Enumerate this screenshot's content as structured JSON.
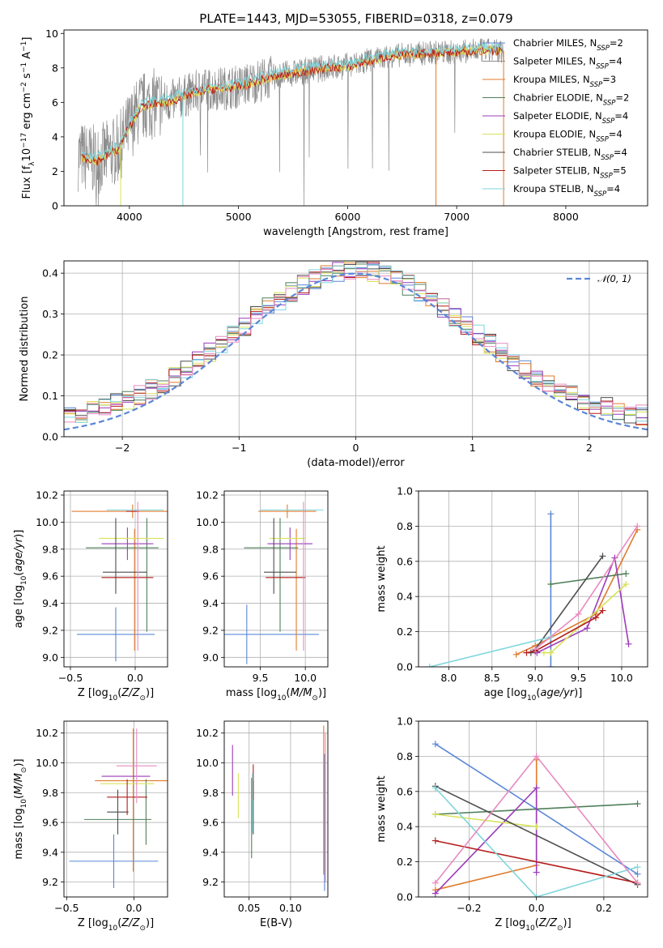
{
  "figure": {
    "title": "PLATE=1443, MJD=53055, FIBERID=0318, z=0.079"
  },
  "colors": {
    "Chabrier MILES": "#5b86d6",
    "Salpeter MILES": "#8c8c8c",
    "Kroupa MILES": "#e07b2c",
    "Chabrier ELODIE": "#4f7f5a",
    "Salpeter ELODIE": "#9b3cb8",
    "Kroupa ELODIE": "#d8e35a",
    "Chabrier STELIB": "#4d4d4d",
    "Salpeter STELIB": "#b51d1d",
    "Kroupa STELIB": "#7fd6dc",
    "Kroupa ELODIE hist": "#e88ac0",
    "normal": "#5b86d6",
    "grid": "#b0b0b0"
  },
  "chart_data": [
    {
      "id": "spectrum",
      "type": "line",
      "title": "PLATE=1443, MJD=53055, FIBERID=0318, z=0.079",
      "xlabel": "wavelength [Angstrom, rest frame]",
      "ylabel": "Flux [f_λ10^-17 erg cm^-2 s^-1 A^-1]",
      "xlim": [
        3400,
        8750
      ],
      "ylim": [
        0,
        10.2
      ],
      "xticks": [
        "4000",
        "5000",
        "6000",
        "7000",
        "8000"
      ],
      "yticks": [
        "0",
        "2",
        "4",
        "6",
        "8",
        "10"
      ],
      "grid": false,
      "legend_position": "right",
      "continuum_x": [
        3550,
        3700,
        3900,
        4000,
        4100,
        4200,
        4400,
        4600,
        4800,
        5000,
        5200,
        5400,
        5600,
        5800,
        6000,
        6200,
        6400,
        6600,
        6800,
        7000,
        7200,
        7400
      ],
      "continuum_y": [
        2.9,
        2.6,
        3.3,
        4.6,
        5.7,
        5.9,
        6.1,
        6.6,
        6.8,
        6.9,
        7.3,
        7.6,
        7.8,
        8.0,
        8.1,
        8.4,
        8.7,
        8.8,
        8.9,
        8.9,
        9.0,
        9.0
      ],
      "legend": [
        {
          "text": "Chabrier MILES, N",
          "sub": "SSP",
          "val": "=2"
        },
        {
          "text": "Salpeter MILES, N",
          "sub": "SSP",
          "val": "=4"
        },
        {
          "text": "Kroupa MILES, N",
          "sub": "SSP",
          "val": "=3"
        },
        {
          "text": "Chabrier ELODIE, N",
          "sub": "SSP",
          "val": "=2"
        },
        {
          "text": "Salpeter ELODIE, N",
          "sub": "SSP",
          "val": "=4"
        },
        {
          "text": "Kroupa ELODIE, N",
          "sub": "SSP",
          "val": "=4"
        },
        {
          "text": "Chabrier STELIB, N",
          "sub": "SSP",
          "val": "=4"
        },
        {
          "text": "Salpeter STELIB, N",
          "sub": "SSP",
          "val": "=5"
        },
        {
          "text": "Kroupa STELIB, N",
          "sub": "SSP",
          "val": "=4"
        }
      ]
    },
    {
      "id": "residuals",
      "type": "bar",
      "xlabel": "(data-model)/error",
      "ylabel": "Normed distribution",
      "xlim": [
        -2.5,
        2.5
      ],
      "ylim": [
        0,
        0.43
      ],
      "xticks": [
        "−2",
        "−1",
        "0",
        "1",
        "2"
      ],
      "yticks": [
        "0.0",
        "0.1",
        "0.2",
        "0.3",
        "0.4"
      ],
      "grid": true,
      "legend": "𝒩(0, 1)",
      "legend_position": "top-right",
      "bin_width": 0.1
    },
    {
      "id": "age_vs_Z",
      "type": "scatter",
      "xlabel": "Z [log10(Z/Z⊙)]",
      "ylabel": "age [log10(age/yr)]",
      "xlim": [
        -0.55,
        0.25
      ],
      "ylim": [
        8.93,
        10.23
      ],
      "xticks": [
        "−0.5",
        "0.0"
      ],
      "yticks": [
        "9.0",
        "9.2",
        "9.4",
        "9.6",
        "9.8",
        "10.0",
        "10.2"
      ],
      "grid": true,
      "points": [
        {
          "model": "Chabrier MILES",
          "x": -0.15,
          "y": 9.17,
          "xerr": 0.3,
          "yerr": 0.2
        },
        {
          "model": "Kroupa MILES",
          "x": -0.02,
          "y": 10.08,
          "xerr": 0.47,
          "yerr": 0.05
        },
        {
          "model": "Kroupa MILES",
          "x": -0.005,
          "y": 9.5,
          "xerr": 0.0,
          "yerr": 0.45
        },
        {
          "model": "Chabrier ELODIE",
          "x": -0.1,
          "y": 9.81,
          "xerr": 0.28,
          "yerr": 0.0
        },
        {
          "model": "Chabrier ELODIE",
          "x": 0.09,
          "y": 9.61,
          "xerr": 0.0,
          "yerr": 0.42
        },
        {
          "model": "Salpeter ELODIE",
          "x": -0.06,
          "y": 9.84,
          "xerr": 0.2,
          "yerr": 0.12
        },
        {
          "model": "Kroupa ELODIE",
          "x": -0.03,
          "y": 9.88,
          "xerr": 0.25,
          "yerr": 0.0
        },
        {
          "model": "Chabrier STELIB",
          "x": -0.15,
          "y": 9.75,
          "xerr": 0.0,
          "yerr": 0.28
        },
        {
          "model": "Chabrier STELIB",
          "x": -0.08,
          "y": 9.63,
          "xerr": 0.17,
          "yerr": 0.0
        },
        {
          "model": "Salpeter STELIB",
          "x": -0.06,
          "y": 9.59,
          "xerr": 0.2,
          "yerr": 0.0
        },
        {
          "model": "Salpeter STELIB",
          "x": -0.02,
          "y": 10.08,
          "xerr": 0.05,
          "yerr": 0.0
        },
        {
          "model": "Kroupa STELIB",
          "x": 0.0,
          "y": 10.09,
          "xerr": 0.22,
          "yerr": 0.0
        },
        {
          "model": "Kroupa ELODIE hist",
          "x": 0.02,
          "y": 9.6,
          "xerr": 0.0,
          "yerr": 0.55
        }
      ]
    },
    {
      "id": "age_vs_mass",
      "type": "scatter",
      "xlabel": "mass [log10(M/M⊙)]",
      "ylabel": "",
      "xlim": [
        9.1,
        10.25
      ],
      "ylim": [
        8.93,
        10.23
      ],
      "xticks": [
        "9.5",
        "10.0"
      ],
      "yticks": [
        "9.0",
        "9.2",
        "9.4",
        "9.6",
        "9.8",
        "10.0",
        "10.2"
      ],
      "grid": true,
      "points": [
        {
          "model": "Chabrier MILES",
          "x": 9.35,
          "y": 9.17,
          "xerr": 0.8,
          "yerr": 0.22
        },
        {
          "model": "Kroupa MILES",
          "x": 9.8,
          "y": 10.08,
          "xerr": 0.32,
          "yerr": 0.05
        },
        {
          "model": "Kroupa MILES",
          "x": 9.9,
          "y": 9.5,
          "xerr": 0.0,
          "yerr": 0.45
        },
        {
          "model": "Chabrier ELODIE",
          "x": 9.62,
          "y": 9.81,
          "xerr": 0.3,
          "yerr": 0.0
        },
        {
          "model": "Chabrier ELODIE",
          "x": 9.72,
          "y": 9.61,
          "xerr": 0.0,
          "yerr": 0.42
        },
        {
          "model": "Salpeter ELODIE",
          "x": 9.83,
          "y": 9.84,
          "xerr": 0.25,
          "yerr": 0.12
        },
        {
          "model": "Kroupa ELODIE",
          "x": 9.8,
          "y": 9.88,
          "xerr": 0.2,
          "yerr": 0.0
        },
        {
          "model": "Chabrier STELIB",
          "x": 9.65,
          "y": 9.75,
          "xerr": 0.0,
          "yerr": 0.28
        },
        {
          "model": "Chabrier STELIB",
          "x": 9.72,
          "y": 9.63,
          "xerr": 0.18,
          "yerr": 0.0
        },
        {
          "model": "Salpeter STELIB",
          "x": 9.78,
          "y": 9.59,
          "xerr": 0.22,
          "yerr": 0.0
        },
        {
          "model": "Kroupa STELIB",
          "x": 9.85,
          "y": 10.09,
          "xerr": 0.35,
          "yerr": 0.0
        },
        {
          "model": "Kroupa ELODIE hist",
          "x": 9.98,
          "y": 9.6,
          "xerr": 0.0,
          "yerr": 0.55
        }
      ]
    },
    {
      "id": "weight_vs_age",
      "type": "line",
      "xlabel": "age [log10(age/yr)]",
      "ylabel": "mass weight",
      "xlim": [
        7.65,
        10.3
      ],
      "ylim": [
        0,
        1.0
      ],
      "xticks": [
        "8.0",
        "8.5",
        "9.0",
        "9.5",
        "10.0"
      ],
      "yticks": [
        "0.0",
        "0.2",
        "0.4",
        "0.6",
        "0.8",
        "1.0"
      ],
      "grid": true,
      "series": [
        {
          "model": "Chabrier MILES",
          "x": [
            9.18,
            9.18
          ],
          "y": [
            0.87,
            0.0
          ]
        },
        {
          "model": "Kroupa MILES",
          "x": [
            8.78,
            9.0,
            9.7,
            10.18
          ],
          "y": [
            0.07,
            0.12,
            0.3,
            0.78
          ]
        },
        {
          "model": "Chabrier ELODIE",
          "x": [
            9.18,
            10.05
          ],
          "y": [
            0.47,
            0.53
          ]
        },
        {
          "model": "Salpeter ELODIE",
          "x": [
            9.02,
            9.6,
            9.92,
            10.08
          ],
          "y": [
            0.08,
            0.22,
            0.62,
            0.13
          ]
        },
        {
          "model": "Kroupa ELODIE",
          "x": [
            9.1,
            9.18,
            10.05
          ],
          "y": [
            0.08,
            0.08,
            0.47
          ]
        },
        {
          "model": "Chabrier STELIB",
          "x": [
            8.95,
            9.0,
            9.78
          ],
          "y": [
            0.08,
            0.1,
            0.63
          ]
        },
        {
          "model": "Salpeter STELIB",
          "x": [
            8.9,
            9.0,
            9.7,
            9.78
          ],
          "y": [
            0.08,
            0.09,
            0.28,
            0.32
          ]
        },
        {
          "model": "Kroupa STELIB",
          "x": [
            7.78,
            9.18
          ],
          "y": [
            0.0,
            0.17
          ]
        },
        {
          "model": "Kroupa ELODIE hist",
          "x": [
            9.0,
            9.5,
            10.18
          ],
          "y": [
            0.1,
            0.3,
            0.8
          ]
        }
      ]
    },
    {
      "id": "mass_vs_Z",
      "type": "scatter",
      "xlabel": "Z [log10(Z/Z⊙)]",
      "ylabel": "mass [log10(M/M⊙)]",
      "xlim": [
        -0.52,
        0.25
      ],
      "ylim": [
        9.1,
        10.28
      ],
      "xticks": [
        "−0.5",
        "0.0"
      ],
      "yticks": [
        "9.2",
        "9.4",
        "9.6",
        "9.8",
        "10.0",
        "10.2"
      ],
      "grid": true,
      "points": [
        {
          "model": "Chabrier MILES",
          "x": -0.15,
          "y": 9.34,
          "xerr": 0.33,
          "yerr": 0.18
        },
        {
          "model": "Kroupa MILES",
          "x": -0.02,
          "y": 9.88,
          "xerr": 0.27,
          "yerr": 0.0
        },
        {
          "model": "Kroupa MILES",
          "x": -0.005,
          "y": 9.75,
          "xerr": 0.0,
          "yerr": 0.48
        },
        {
          "model": "Chabrier ELODIE",
          "x": -0.12,
          "y": 9.62,
          "xerr": 0.25,
          "yerr": 0.0
        },
        {
          "model": "Chabrier ELODIE",
          "x": 0.09,
          "y": 9.67,
          "xerr": 0.0,
          "yerr": 0.22
        },
        {
          "model": "Salpeter ELODIE",
          "x": -0.06,
          "y": 9.91,
          "xerr": 0.18,
          "yerr": 0.0
        },
        {
          "model": "Kroupa ELODIE",
          "x": -0.05,
          "y": 9.86,
          "xerr": 0.2,
          "yerr": 0.0
        },
        {
          "model": "Chabrier STELIB",
          "x": -0.12,
          "y": 9.67,
          "xerr": 0.08,
          "yerr": 0.15
        },
        {
          "model": "Salpeter STELIB",
          "x": -0.05,
          "y": 9.77,
          "xerr": 0.15,
          "yerr": 0.12
        },
        {
          "model": "Kroupa ELODIE hist",
          "x": 0.02,
          "y": 9.98,
          "xerr": 0.15,
          "yerr": 0.25
        }
      ]
    },
    {
      "id": "mass_vs_ebv",
      "type": "scatter",
      "xlabel": "E(B-V)",
      "ylabel": "",
      "xlim": [
        0.02,
        0.145
      ],
      "ylim": [
        9.1,
        10.28
      ],
      "xticks": [
        "0.05",
        "0.10"
      ],
      "yticks": [
        "9.2",
        "9.4",
        "9.6",
        "9.8",
        "10.0",
        "10.2"
      ],
      "grid": true,
      "points": [
        {
          "model": "Chabrier MILES",
          "x": 0.141,
          "y": 9.6,
          "xerr": 0.0,
          "yerr": 0.46
        },
        {
          "model": "Kroupa MILES",
          "x": 0.14,
          "y": 9.75,
          "xerr": 0.0,
          "yerr": 0.5
        },
        {
          "model": "Chabrier ELODIE",
          "x": 0.053,
          "y": 9.63,
          "xerr": 0.0,
          "yerr": 0.27
        },
        {
          "model": "Salpeter ELODIE",
          "x": 0.03,
          "y": 9.95,
          "xerr": 0.0,
          "yerr": 0.17
        },
        {
          "model": "Kroupa ELODIE",
          "x": 0.037,
          "y": 9.78,
          "xerr": 0.0,
          "yerr": 0.15
        },
        {
          "model": "Chabrier STELIB",
          "x": 0.055,
          "y": 9.7,
          "xerr": 0.0,
          "yerr": 0.18
        },
        {
          "model": "Salpeter STELIB",
          "x": 0.055,
          "y": 9.87,
          "xerr": 0.0,
          "yerr": 0.12
        },
        {
          "model": "Kroupa STELIB",
          "x": 0.054,
          "y": 9.73,
          "xerr": 0.0,
          "yerr": 0.2
        },
        {
          "model": "Kroupa ELODIE hist",
          "x": 0.142,
          "y": 9.7,
          "xerr": 0.0,
          "yerr": 0.5
        }
      ]
    },
    {
      "id": "weight_vs_Z",
      "type": "line",
      "xlabel": "Z [log10(Z/Z⊙)]",
      "ylabel": "mass weight",
      "xlim": [
        -0.35,
        0.33
      ],
      "ylim": [
        0,
        1.0
      ],
      "xticks": [
        "−0.2",
        "0.0",
        "0.2"
      ],
      "yticks": [
        "0.0",
        "0.2",
        "0.4",
        "0.6",
        "0.8",
        "1.0"
      ],
      "grid": true,
      "series": [
        {
          "model": "Chabrier MILES",
          "x": [
            -0.3,
            0.3
          ],
          "y": [
            0.87,
            0.13
          ]
        },
        {
          "model": "Kroupa MILES",
          "x": [
            -0.3,
            0.0,
            0.0
          ],
          "y": [
            0.04,
            0.18,
            0.78
          ]
        },
        {
          "model": "Chabrier ELODIE",
          "x": [
            -0.3,
            0.3
          ],
          "y": [
            0.47,
            0.53
          ]
        },
        {
          "model": "Salpeter ELODIE",
          "x": [
            -0.3,
            0.0,
            0.0
          ],
          "y": [
            0.02,
            0.62,
            0.14
          ]
        },
        {
          "model": "Kroupa ELODIE",
          "x": [
            -0.3,
            0.0
          ],
          "y": [
            0.47,
            0.4
          ]
        },
        {
          "model": "Chabrier STELIB",
          "x": [
            -0.3,
            0.3
          ],
          "y": [
            0.63,
            0.07
          ]
        },
        {
          "model": "Salpeter STELIB",
          "x": [
            -0.3,
            0.3
          ],
          "y": [
            0.32,
            0.08
          ]
        },
        {
          "model": "Kroupa STELIB",
          "x": [
            -0.3,
            0.0,
            0.3
          ],
          "y": [
            0.62,
            0.0,
            0.17
          ]
        },
        {
          "model": "Kroupa ELODIE hist",
          "x": [
            -0.3,
            0.0,
            0.3
          ],
          "y": [
            0.08,
            0.8,
            0.08
          ]
        }
      ]
    }
  ]
}
